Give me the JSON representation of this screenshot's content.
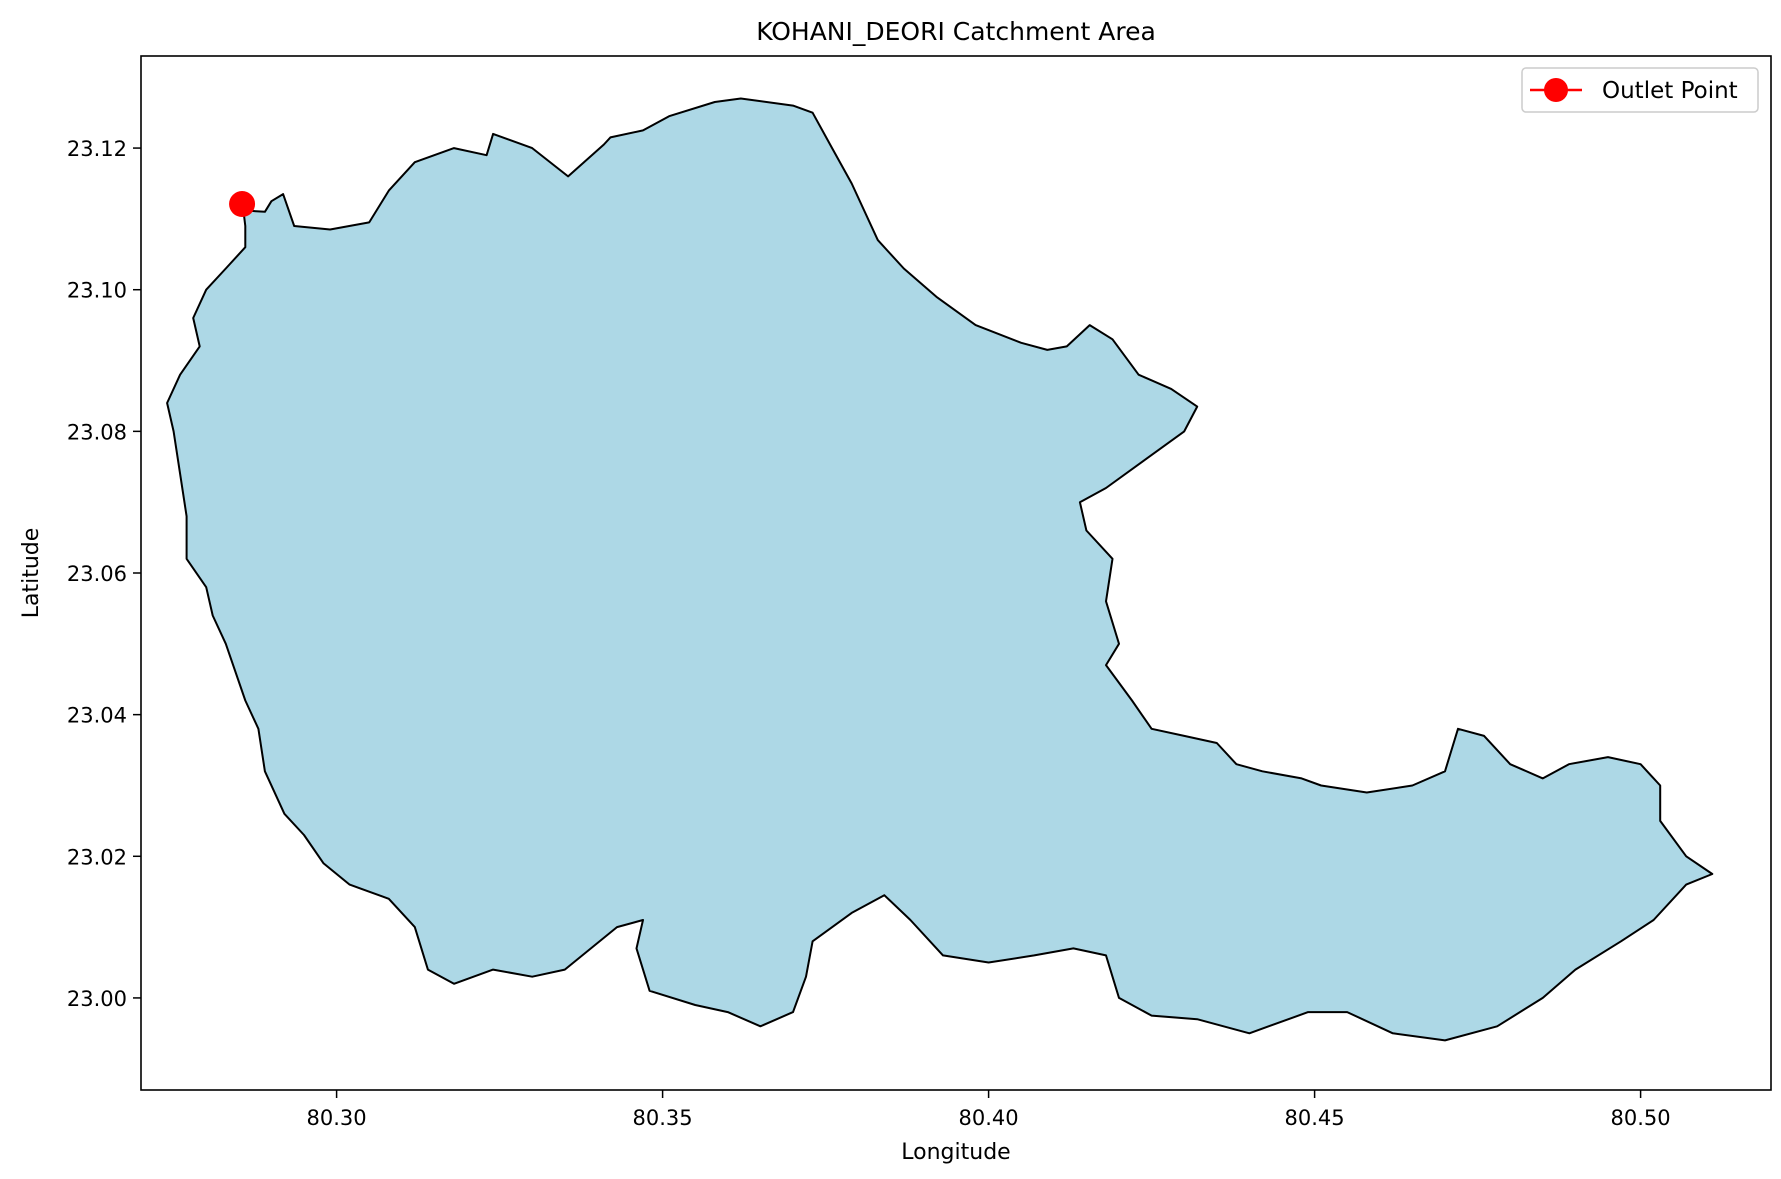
{
  "chart_data": {
    "type": "map",
    "title": "KOHANI_DEORI Catchment Area",
    "xlabel": "Longitude",
    "ylabel": "Latitude",
    "xlim": [
      80.27,
      80.52
    ],
    "ylim": [
      22.987,
      23.133
    ],
    "xticks": [
      80.3,
      80.35,
      80.4,
      80.45,
      80.5
    ],
    "xtick_labels": [
      "80.30",
      "80.35",
      "80.40",
      "80.45",
      "80.50"
    ],
    "yticks": [
      23.0,
      23.02,
      23.04,
      23.06,
      23.08,
      23.1,
      23.12
    ],
    "ytick_labels": [
      "23.00",
      "23.02",
      "23.04",
      "23.06",
      "23.08",
      "23.10",
      "23.12"
    ],
    "grid": false,
    "legend_position": "upper right",
    "legend_entries": [
      {
        "label": "Outlet Point",
        "color": "#ff0000",
        "marker": "circle"
      }
    ],
    "catchment": {
      "fill_color": "#add8e6",
      "edge_color": "#000000",
      "boundary": [
        [
          80.2857,
          23.1112
        ],
        [
          80.289,
          23.111
        ],
        [
          80.29,
          23.1125
        ],
        [
          80.2918,
          23.1135
        ],
        [
          80.2935,
          23.109
        ],
        [
          80.299,
          23.1085
        ],
        [
          80.305,
          23.1095
        ],
        [
          80.308,
          23.114
        ],
        [
          80.312,
          23.118
        ],
        [
          80.318,
          23.12
        ],
        [
          80.323,
          23.119
        ],
        [
          80.324,
          23.122
        ],
        [
          80.33,
          23.12
        ],
        [
          80.3355,
          23.116
        ],
        [
          80.341,
          23.1205
        ],
        [
          80.342,
          23.1215
        ],
        [
          80.347,
          23.1225
        ],
        [
          80.351,
          23.1245
        ],
        [
          80.358,
          23.1265
        ],
        [
          80.362,
          23.127
        ],
        [
          80.37,
          23.126
        ],
        [
          80.373,
          23.125
        ],
        [
          80.376,
          23.12
        ],
        [
          80.379,
          23.115
        ],
        [
          80.383,
          23.107
        ],
        [
          80.387,
          23.103
        ],
        [
          80.392,
          23.099
        ],
        [
          80.398,
          23.095
        ],
        [
          80.405,
          23.0925
        ],
        [
          80.409,
          23.0915
        ],
        [
          80.412,
          23.092
        ],
        [
          80.4155,
          23.095
        ],
        [
          80.419,
          23.093
        ],
        [
          80.423,
          23.088
        ],
        [
          80.428,
          23.086
        ],
        [
          80.432,
          23.0835
        ],
        [
          80.43,
          23.08
        ],
        [
          80.424,
          23.076
        ],
        [
          80.418,
          23.072
        ],
        [
          80.414,
          23.07
        ],
        [
          80.415,
          23.066
        ],
        [
          80.419,
          23.062
        ],
        [
          80.418,
          23.056
        ],
        [
          80.42,
          23.05
        ],
        [
          80.418,
          23.047
        ],
        [
          80.422,
          23.042
        ],
        [
          80.425,
          23.038
        ],
        [
          80.43,
          23.037
        ],
        [
          80.435,
          23.036
        ],
        [
          80.438,
          23.033
        ],
        [
          80.442,
          23.032
        ],
        [
          80.448,
          23.031
        ],
        [
          80.451,
          23.03
        ],
        [
          80.458,
          23.029
        ],
        [
          80.465,
          23.03
        ],
        [
          80.47,
          23.032
        ],
        [
          80.472,
          23.038
        ],
        [
          80.476,
          23.037
        ],
        [
          80.48,
          23.033
        ],
        [
          80.485,
          23.031
        ],
        [
          80.489,
          23.033
        ],
        [
          80.495,
          23.034
        ],
        [
          80.5,
          23.033
        ],
        [
          80.503,
          23.03
        ],
        [
          80.503,
          23.025
        ],
        [
          80.507,
          23.02
        ],
        [
          80.511,
          23.0175
        ],
        [
          80.507,
          23.016
        ],
        [
          80.502,
          23.011
        ],
        [
          80.497,
          23.008
        ],
        [
          80.49,
          23.004
        ],
        [
          80.485,
          23.0
        ],
        [
          80.478,
          22.996
        ],
        [
          80.47,
          22.994
        ],
        [
          80.462,
          22.995
        ],
        [
          80.455,
          22.998
        ],
        [
          80.449,
          22.998
        ],
        [
          80.44,
          22.995
        ],
        [
          80.432,
          22.997
        ],
        [
          80.425,
          22.9975
        ],
        [
          80.42,
          23.0
        ],
        [
          80.418,
          23.006
        ],
        [
          80.413,
          23.007
        ],
        [
          80.407,
          23.006
        ],
        [
          80.4,
          23.005
        ],
        [
          80.393,
          23.006
        ],
        [
          80.388,
          23.011
        ],
        [
          80.384,
          23.0145
        ],
        [
          80.379,
          23.012
        ],
        [
          80.373,
          23.008
        ],
        [
          80.372,
          23.003
        ],
        [
          80.37,
          22.998
        ],
        [
          80.365,
          22.996
        ],
        [
          80.36,
          22.998
        ],
        [
          80.355,
          22.999
        ],
        [
          80.348,
          23.001
        ],
        [
          80.346,
          23.007
        ],
        [
          80.347,
          23.011
        ],
        [
          80.343,
          23.01
        ],
        [
          80.339,
          23.007
        ],
        [
          80.335,
          23.004
        ],
        [
          80.33,
          23.003
        ],
        [
          80.324,
          23.004
        ],
        [
          80.318,
          23.002
        ],
        [
          80.314,
          23.004
        ],
        [
          80.312,
          23.01
        ],
        [
          80.308,
          23.014
        ],
        [
          80.302,
          23.016
        ],
        [
          80.298,
          23.019
        ],
        [
          80.295,
          23.023
        ],
        [
          80.292,
          23.026
        ],
        [
          80.289,
          23.032
        ],
        [
          80.288,
          23.038
        ],
        [
          80.286,
          23.042
        ],
        [
          80.283,
          23.05
        ],
        [
          80.281,
          23.054
        ],
        [
          80.28,
          23.058
        ],
        [
          80.277,
          23.062
        ],
        [
          80.277,
          23.068
        ],
        [
          80.276,
          23.074
        ],
        [
          80.275,
          23.08
        ],
        [
          80.274,
          23.084
        ],
        [
          80.276,
          23.088
        ],
        [
          80.279,
          23.092
        ],
        [
          80.278,
          23.096
        ],
        [
          80.28,
          23.1
        ],
        [
          80.283,
          23.103
        ],
        [
          80.286,
          23.106
        ],
        [
          80.286,
          23.109
        ]
      ]
    },
    "outlet_point": {
      "label": "Outlet Point",
      "lon": 80.2855,
      "lat": 23.1121,
      "color": "#ff0000"
    }
  }
}
